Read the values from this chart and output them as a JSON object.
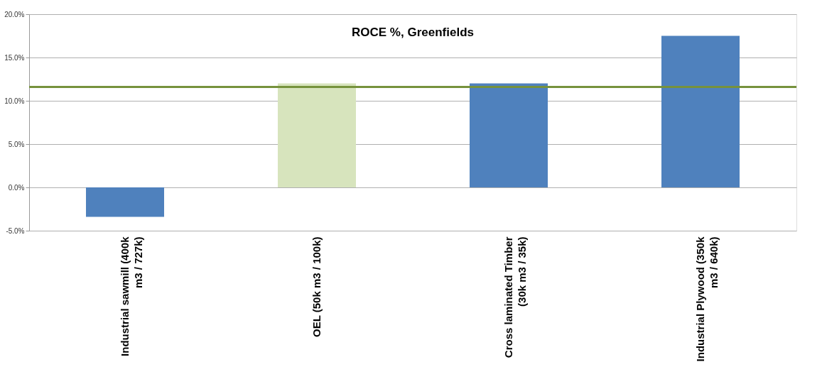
{
  "chart_data": {
    "type": "bar",
    "title": "ROCE %, Greenfields",
    "categories": [
      "Industrial sawmill (400k m3 / 727k)",
      "OEL (50k m3 / 100k)",
      "Cross laminated Timber (30k m3 / 35k)",
      "Industrial Plywood (350k m3 / 640k)"
    ],
    "values": [
      -3.4,
      12.0,
      12.0,
      17.5
    ],
    "colors": [
      "#4f81bd",
      "#d7e4bd",
      "#4f81bd",
      "#4f81bd"
    ],
    "ylim": [
      -5,
      20
    ],
    "yticks": [
      {
        "value": -5,
        "label": "-5.0%"
      },
      {
        "value": 0,
        "label": "0.0%"
      },
      {
        "value": 5,
        "label": "5.0%"
      },
      {
        "value": 10,
        "label": "10.0%"
      },
      {
        "value": 15,
        "label": "15.0%"
      },
      {
        "value": 20,
        "label": "20.0%"
      }
    ],
    "ref_lines": [
      {
        "axis": "y",
        "value": 11.6,
        "color": "#76923c"
      }
    ],
    "grid": "y"
  }
}
